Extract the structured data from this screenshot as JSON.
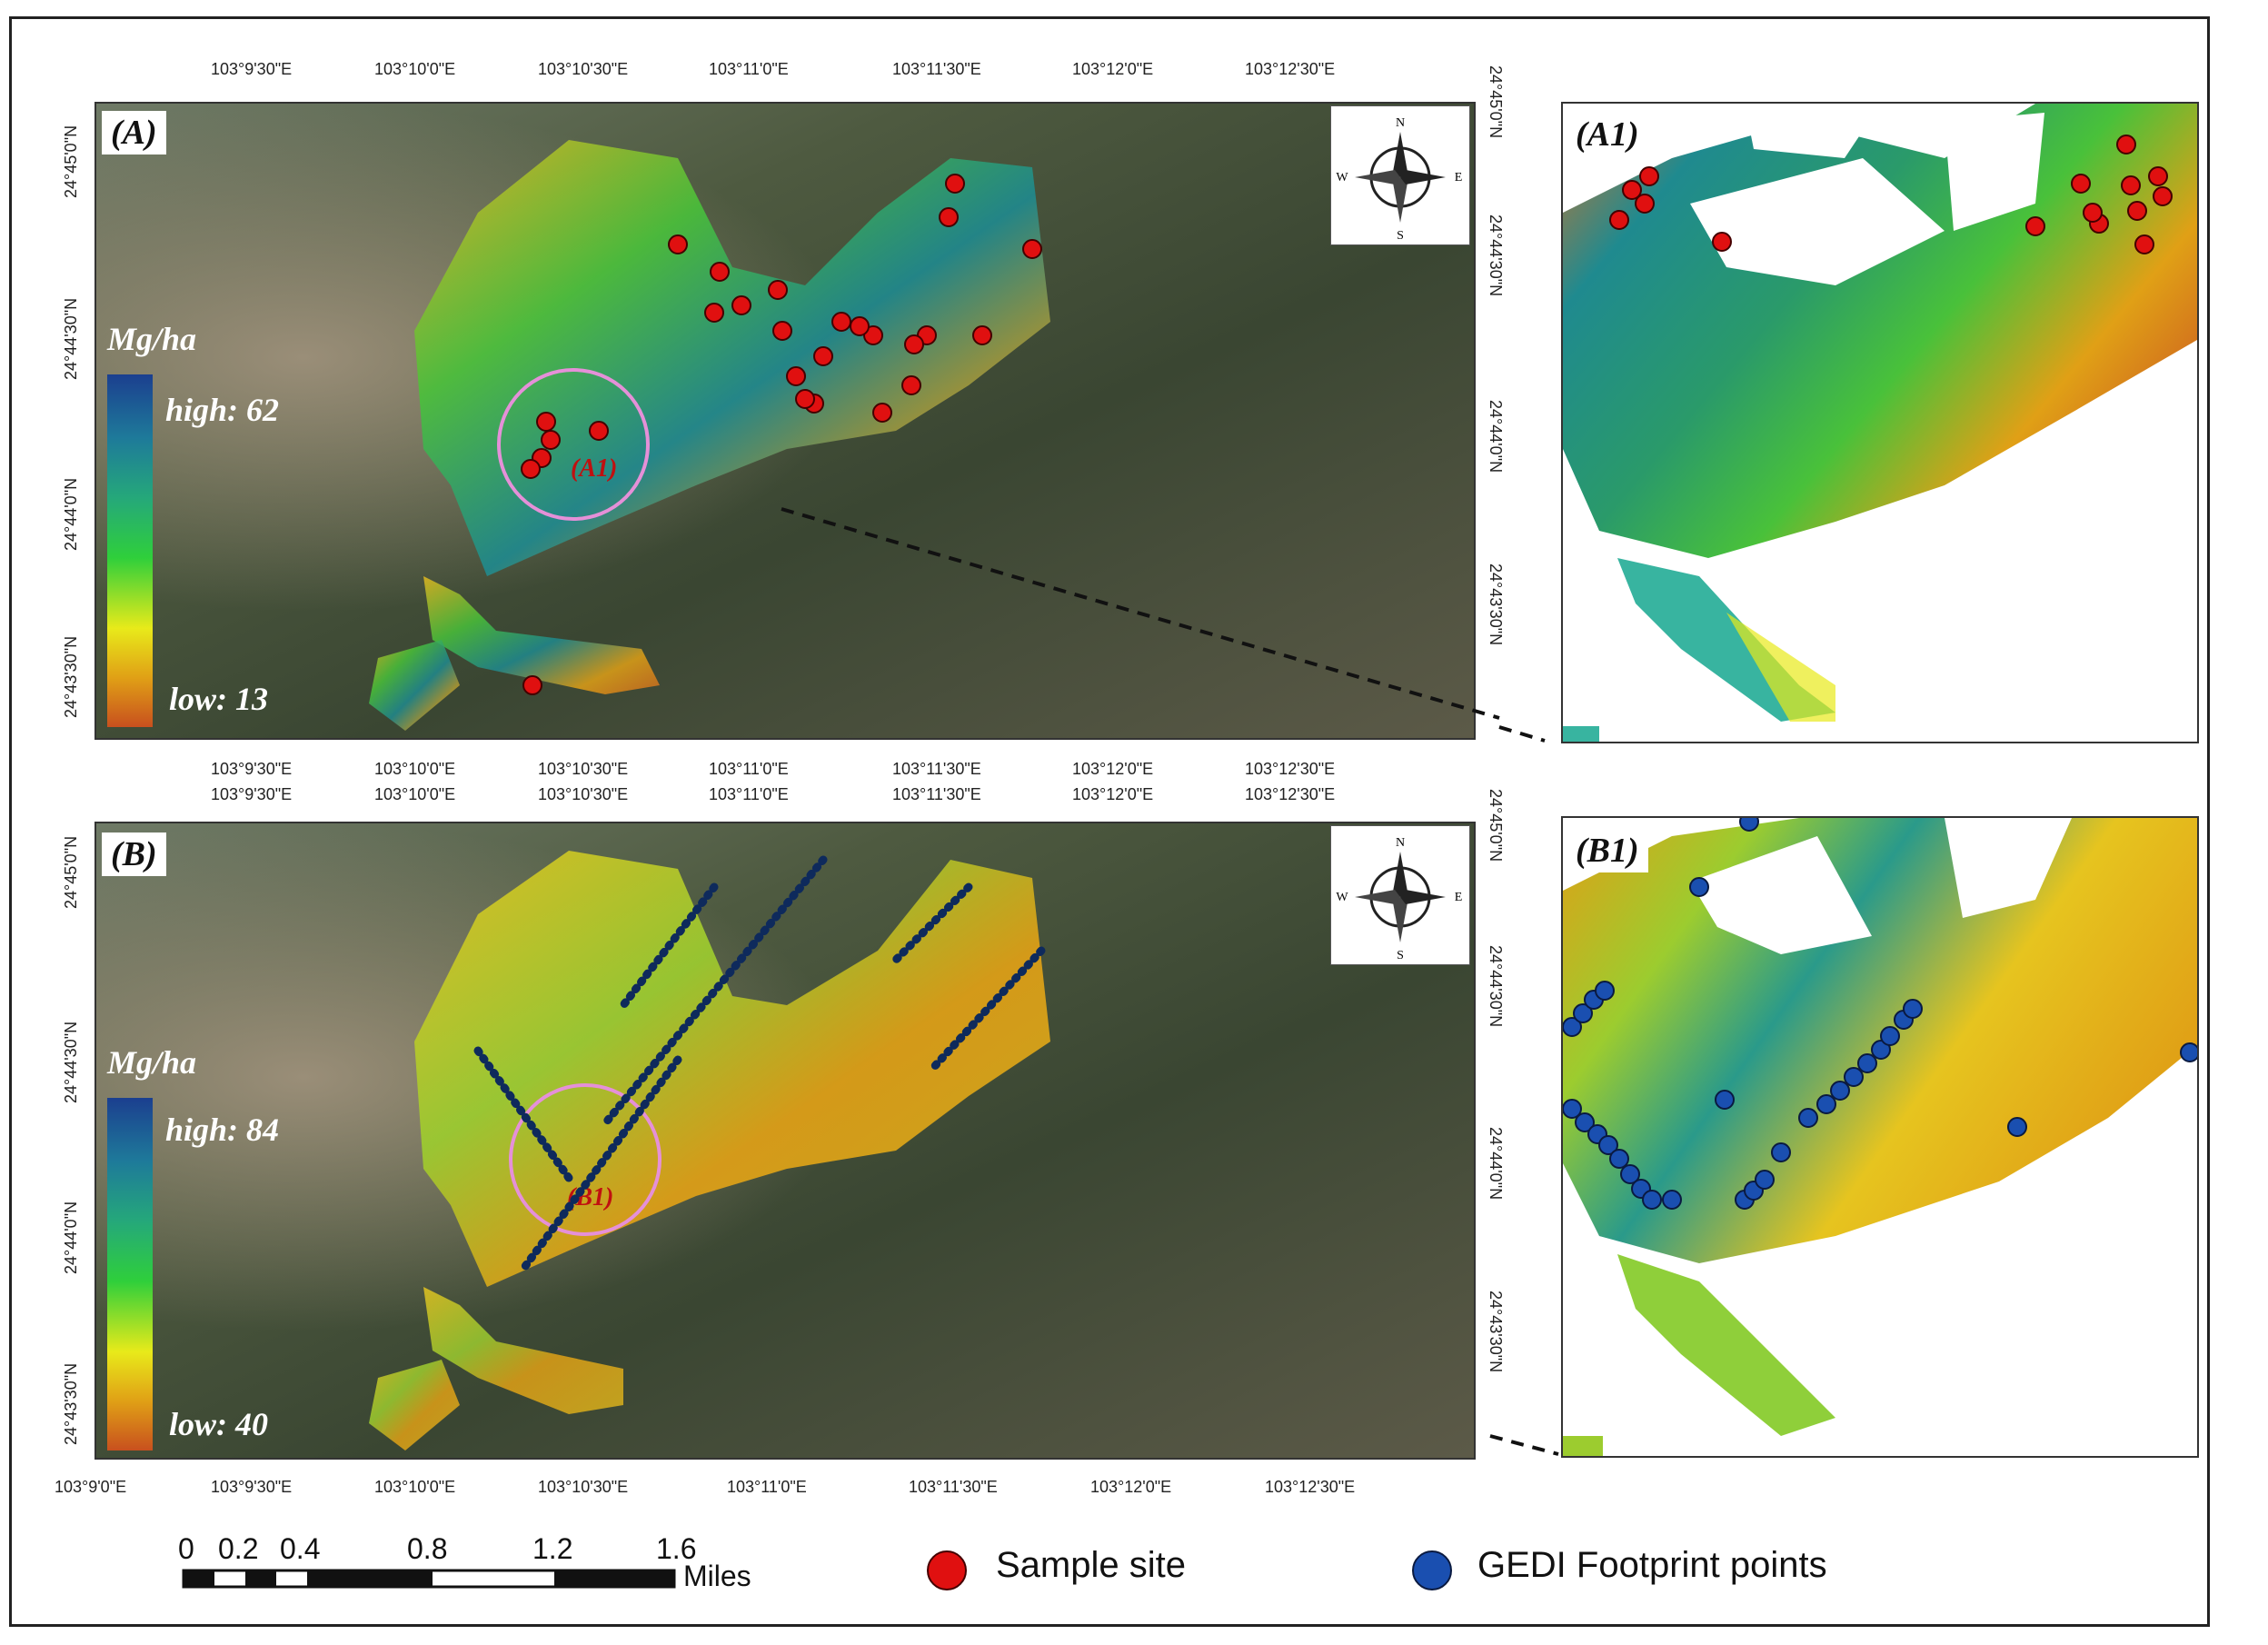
{
  "panels": {
    "A": {
      "label": "(A)",
      "legend_unit": "Mg/ha",
      "high": "high: 62",
      "low": "low: 13"
    },
    "B": {
      "label": "(B)",
      "legend_unit": "Mg/ha",
      "high": "high: 84",
      "low": "low: 40"
    },
    "A1": {
      "label": "(A1)"
    },
    "B1": {
      "label": "(B1)"
    }
  },
  "circle_labels": {
    "A": "(A1)",
    "B": "(B1)"
  },
  "x_ticks_A": [
    "103°9'30\"E",
    "103°10'0\"E",
    "103°10'30\"E",
    "103°11'0\"E",
    "103°11'30\"E",
    "103°12'0\"E",
    "103°12'30\"E"
  ],
  "x_ticks_B_top": [
    "103°9'30\"E",
    "103°10'0\"E",
    "103°10'30\"E",
    "103°11'0\"E",
    "103°11'30\"E",
    "103°12'0\"E",
    "103°12'30\"E"
  ],
  "x_ticks_B": [
    "103°9'0\"E",
    "103°9'30\"E",
    "103°10'0\"E",
    "103°10'30\"E",
    "103°11'0\"E",
    "103°11'30\"E",
    "103°12'0\"E",
    "103°12'30\"E"
  ],
  "y_ticks_A": [
    "24°45'0\"N",
    "24°44'30\"N",
    "24°44'0\"N",
    "24°43'30\"N"
  ],
  "y_ticks_B": [
    "24°45'0\"N",
    "24°44'30\"N",
    "24°44'0\"N",
    "24°43'30\"N"
  ],
  "compass": {
    "n": "N",
    "s": "S",
    "e": "E",
    "w": "W"
  },
  "scale_bar": {
    "ticks": [
      "0",
      "0.2",
      "0.4",
      "0.8",
      "1.2",
      "1.6"
    ],
    "unit": "Miles"
  },
  "legend": {
    "sample_site": "Sample site",
    "gedi": "GEDI Footprint points",
    "sample_color": "#e01010",
    "gedi_color": "#1a4fb0"
  },
  "colors": {
    "high": "#1b3f8f",
    "mid": "#2fcf3b",
    "low_yellow": "#e8ea1a",
    "low": "#c8501e"
  }
}
